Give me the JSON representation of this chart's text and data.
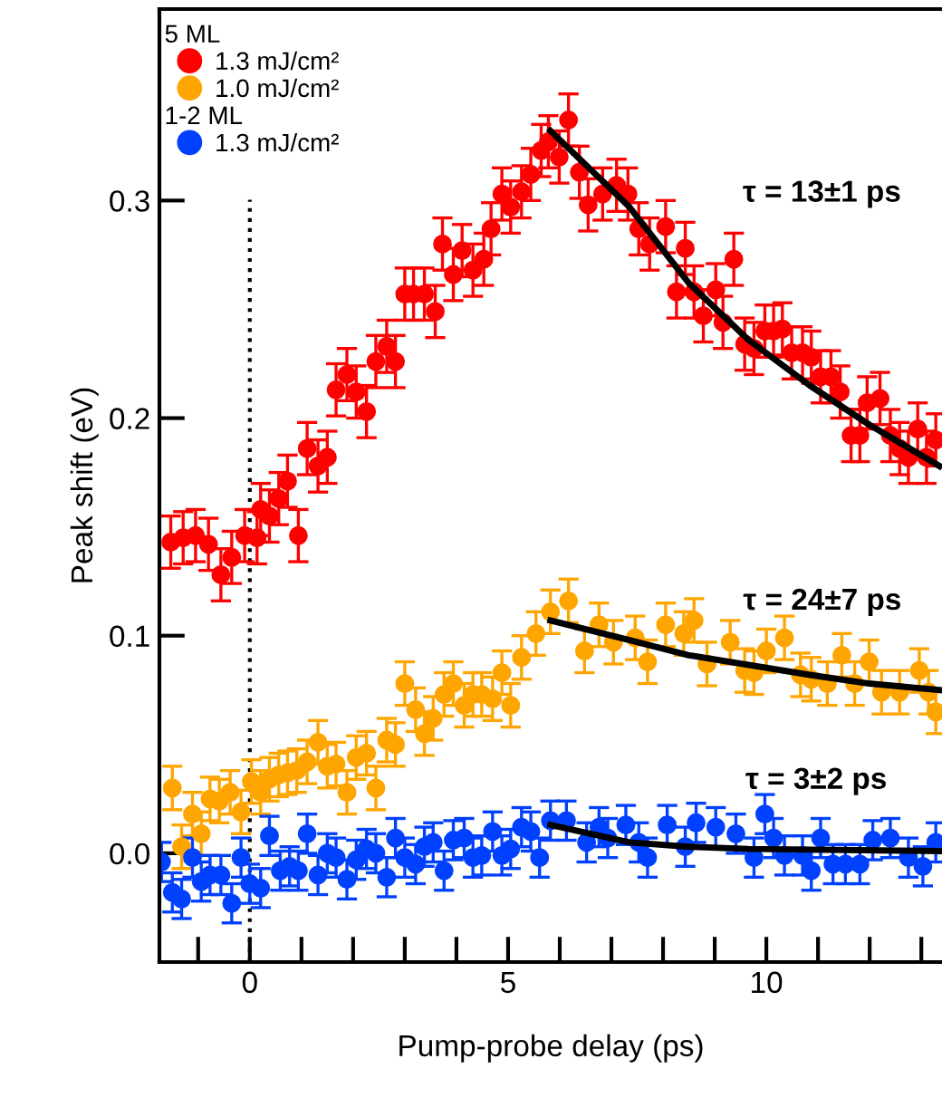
{
  "chart_data": {
    "type": "scatter",
    "xlabel": "Pump-probe delay (ps)",
    "ylabel": "Peak shift (eV)",
    "xlim": [
      -1.75,
      13.4
    ],
    "ylim": [
      -0.05,
      0.388
    ],
    "xticks": [
      {
        "value": -1,
        "label": null
      },
      {
        "value": 0,
        "label": "0"
      },
      {
        "value": 1,
        "label": null
      },
      {
        "value": 2,
        "label": null
      },
      {
        "value": 3,
        "label": null
      },
      {
        "value": 4,
        "label": null
      },
      {
        "value": 5,
        "label": "5"
      },
      {
        "value": 6,
        "label": null
      },
      {
        "value": 7,
        "label": null
      },
      {
        "value": 8,
        "label": null
      },
      {
        "value": 9,
        "label": null
      },
      {
        "value": 10,
        "label": "10"
      },
      {
        "value": 11,
        "label": null
      },
      {
        "value": 12,
        "label": null
      },
      {
        "value": 13,
        "label": null
      }
    ],
    "yticks": [
      {
        "value": 0,
        "label": "0.0"
      },
      {
        "value": 0.1,
        "label": "0.1"
      },
      {
        "value": 0.2,
        "label": "0.2"
      },
      {
        "value": 0.3,
        "label": "0.3"
      }
    ],
    "grid": false,
    "legend": "top left",
    "marker": "circle",
    "ref_lines": [
      {
        "axis": "x",
        "value": 0,
        "color": "#000000",
        "line_style": "dotted"
      }
    ],
    "annotations": [
      "5 ML",
      "1-2 ML",
      {
        "text": "τ = 13±1 ps",
        "x": 9.37,
        "y": 0.273
      },
      {
        "text": "τ = 24±7 ps",
        "x": 10.84,
        "y": 0.082
      },
      {
        "text": "τ = 3±2 ps",
        "x": 9.65,
        "y": 0.002
      }
    ],
    "series": [
      {
        "name": "1.3 mJ/cm²",
        "color": "#ff0000",
        "x": [
          -1.53,
          -1.29,
          -1.05,
          -0.8,
          -0.56,
          -0.35,
          -0.1,
          0.14,
          0.21,
          0.38,
          0.56,
          0.73,
          0.94,
          1.11,
          1.32,
          1.5,
          1.67,
          1.88,
          2.06,
          2.26,
          2.44,
          2.65,
          2.82,
          3.0,
          3.17,
          3.38,
          3.59,
          3.73,
          3.94,
          4.11,
          4.32,
          4.53,
          4.67,
          4.88,
          5.05,
          5.26,
          5.44,
          5.64,
          5.78,
          5.99,
          6.17,
          6.38,
          6.55,
          6.83,
          7.1,
          7.32,
          7.53,
          7.74,
          8.05,
          8.26,
          8.43,
          8.6,
          8.78,
          9.02,
          9.16,
          9.37,
          9.58,
          9.76,
          9.97,
          10.14,
          10.31,
          10.49,
          10.7,
          10.87,
          11.05,
          11.25,
          11.43,
          11.64,
          11.81,
          11.95,
          12.2,
          12.4,
          12.58,
          12.75,
          12.93,
          13.1,
          13.28
        ],
        "values": [
          0.143,
          0.145,
          0.146,
          0.142,
          0.128,
          0.136,
          0.146,
          0.145,
          0.158,
          0.155,
          0.163,
          0.171,
          0.146,
          0.186,
          0.178,
          0.182,
          0.213,
          0.22,
          0.212,
          0.203,
          0.226,
          0.233,
          0.226,
          0.257,
          0.257,
          0.257,
          0.249,
          0.28,
          0.266,
          0.277,
          0.268,
          0.273,
          0.287,
          0.303,
          0.297,
          0.304,
          0.312,
          0.323,
          0.327,
          0.32,
          0.337,
          0.313,
          0.298,
          0.303,
          0.307,
          0.303,
          0.287,
          0.28,
          0.288,
          0.258,
          0.278,
          0.258,
          0.247,
          0.259,
          0.244,
          0.273,
          0.234,
          0.232,
          0.24,
          0.24,
          0.241,
          0.23,
          0.23,
          0.228,
          0.219,
          0.219,
          0.212,
          0.192,
          0.192,
          0.207,
          0.209,
          0.192,
          0.186,
          0.182,
          0.195,
          0.182,
          0.19
        ],
        "errors": [
          0.012,
          0.012,
          0.012,
          0.012,
          0.012,
          0.012,
          0.012,
          0.012,
          0.012,
          0.012,
          0.012,
          0.012,
          0.012,
          0.012,
          0.012,
          0.012,
          0.012,
          0.012,
          0.012,
          0.012,
          0.012,
          0.012,
          0.012,
          0.012,
          0.012,
          0.012,
          0.012,
          0.012,
          0.012,
          0.012,
          0.012,
          0.012,
          0.012,
          0.012,
          0.012,
          0.012,
          0.012,
          0.012,
          0.012,
          0.012,
          0.012,
          0.012,
          0.012,
          0.012,
          0.012,
          0.012,
          0.012,
          0.012,
          0.012,
          0.012,
          0.012,
          0.012,
          0.012,
          0.012,
          0.012,
          0.012,
          0.012,
          0.012,
          0.012,
          0.012,
          0.012,
          0.012,
          0.012,
          0.012,
          0.012,
          0.012,
          0.012,
          0.012,
          0.012,
          0.012,
          0.012,
          0.012,
          0.012,
          0.012,
          0.012,
          0.012,
          0.012
        ]
      },
      {
        "name": "1.0 mJ/cm²",
        "color": "#ffa500",
        "x": [
          -1.5,
          -1.32,
          -1.11,
          -0.94,
          -0.77,
          -0.59,
          -0.38,
          -0.17,
          0.03,
          0.21,
          0.38,
          0.56,
          0.73,
          0.91,
          1.11,
          1.32,
          1.5,
          1.67,
          1.88,
          2.06,
          2.26,
          2.44,
          2.65,
          2.82,
          3.0,
          3.21,
          3.38,
          3.55,
          3.76,
          3.94,
          4.15,
          4.32,
          4.49,
          4.7,
          4.88,
          5.05,
          5.26,
          5.54,
          5.82,
          6.17,
          6.48,
          6.76,
          7.04,
          7.46,
          7.7,
          8.05,
          8.4,
          8.6,
          8.85,
          9.3,
          9.58,
          9.76,
          10.0,
          10.35,
          10.66,
          10.87,
          11.18,
          11.46,
          11.71,
          11.99,
          12.23,
          12.58,
          12.96,
          13.14,
          13.28
        ],
        "values": [
          0.03,
          0.003,
          0.018,
          0.009,
          0.025,
          0.024,
          0.028,
          0.019,
          0.033,
          0.028,
          0.034,
          0.036,
          0.037,
          0.038,
          0.042,
          0.051,
          0.04,
          0.041,
          0.028,
          0.044,
          0.046,
          0.03,
          0.052,
          0.05,
          0.078,
          0.066,
          0.055,
          0.062,
          0.073,
          0.078,
          0.068,
          0.073,
          0.073,
          0.071,
          0.083,
          0.068,
          0.09,
          0.101,
          0.111,
          0.116,
          0.093,
          0.105,
          0.097,
          0.099,
          0.088,
          0.105,
          0.101,
          0.107,
          0.087,
          0.097,
          0.084,
          0.083,
          0.093,
          0.099,
          0.082,
          0.08,
          0.078,
          0.091,
          0.078,
          0.088,
          0.074,
          0.074,
          0.084,
          0.074,
          0.065
        ],
        "errors": [
          0.01,
          0.01,
          0.01,
          0.01,
          0.01,
          0.01,
          0.01,
          0.01,
          0.01,
          0.01,
          0.01,
          0.01,
          0.01,
          0.01,
          0.01,
          0.01,
          0.01,
          0.01,
          0.01,
          0.01,
          0.01,
          0.01,
          0.01,
          0.01,
          0.01,
          0.01,
          0.01,
          0.01,
          0.01,
          0.01,
          0.01,
          0.01,
          0.01,
          0.01,
          0.01,
          0.01,
          0.01,
          0.01,
          0.01,
          0.01,
          0.01,
          0.01,
          0.01,
          0.01,
          0.01,
          0.01,
          0.01,
          0.01,
          0.01,
          0.01,
          0.01,
          0.01,
          0.01,
          0.01,
          0.01,
          0.01,
          0.01,
          0.01,
          0.01,
          0.01,
          0.01,
          0.01,
          0.01,
          0.01,
          0.01
        ]
      },
      {
        "name": "1.3 mJ/cm²",
        "color": "#0040ff",
        "x": [
          -1.71,
          -1.5,
          -1.32,
          -1.11,
          -0.94,
          -0.77,
          -0.56,
          -0.35,
          -0.17,
          0.0,
          0.21,
          0.38,
          0.59,
          0.77,
          0.94,
          1.11,
          1.32,
          1.5,
          1.67,
          1.88,
          2.06,
          2.26,
          2.44,
          2.65,
          2.82,
          3.0,
          3.21,
          3.38,
          3.55,
          3.76,
          3.94,
          4.15,
          4.32,
          4.49,
          4.7,
          4.88,
          5.05,
          5.26,
          5.44,
          5.61,
          5.82,
          6.13,
          6.52,
          6.76,
          6.93,
          7.28,
          7.53,
          7.7,
          8.08,
          8.43,
          8.64,
          9.02,
          9.41,
          9.76,
          9.97,
          10.14,
          10.35,
          10.7,
          10.87,
          11.05,
          11.29,
          11.53,
          11.81,
          12.06,
          12.4,
          12.75,
          13.03,
          13.28
        ],
        "values": [
          -0.004,
          -0.018,
          -0.021,
          -0.002,
          -0.013,
          -0.01,
          -0.01,
          -0.023,
          -0.002,
          -0.014,
          -0.016,
          0.008,
          -0.008,
          -0.006,
          -0.008,
          0.009,
          -0.01,
          0.0,
          -0.002,
          -0.012,
          -0.003,
          0.002,
          0.0,
          -0.011,
          0.007,
          -0.002,
          -0.005,
          0.003,
          0.005,
          -0.008,
          0.006,
          0.007,
          -0.002,
          -0.001,
          0.01,
          -0.001,
          0.002,
          0.012,
          0.01,
          -0.002,
          0.015,
          0.015,
          0.005,
          0.012,
          0.007,
          0.013,
          0.005,
          -0.002,
          0.013,
          0.003,
          0.014,
          0.012,
          0.009,
          -0.002,
          0.018,
          0.007,
          -0.001,
          -0.001,
          -0.008,
          0.007,
          -0.005,
          -0.005,
          -0.005,
          0.006,
          0.007,
          -0.002,
          -0.006,
          0.005
        ],
        "errors": [
          0.009,
          0.009,
          0.009,
          0.009,
          0.009,
          0.009,
          0.009,
          0.009,
          0.009,
          0.009,
          0.009,
          0.009,
          0.009,
          0.009,
          0.009,
          0.009,
          0.009,
          0.009,
          0.009,
          0.009,
          0.009,
          0.009,
          0.009,
          0.009,
          0.009,
          0.009,
          0.009,
          0.009,
          0.009,
          0.009,
          0.009,
          0.009,
          0.009,
          0.009,
          0.009,
          0.009,
          0.009,
          0.009,
          0.009,
          0.009,
          0.009,
          0.009,
          0.009,
          0.009,
          0.009,
          0.009,
          0.009,
          0.009,
          0.009,
          0.009,
          0.009,
          0.009,
          0.009,
          0.009,
          0.009,
          0.009,
          0.009,
          0.009,
          0.009,
          0.009,
          0.009,
          0.009,
          0.009,
          0.009,
          0.009,
          0.009,
          0.009,
          0.009
        ]
      },
      {
        "type": "line",
        "marker": "none",
        "color": "#000000",
        "x": [
          5.82,
          7.35,
          8.5,
          9.65,
          10.84,
          11.99,
          13.35
        ],
        "values": [
          0.332,
          0.297,
          0.262,
          0.236,
          0.215,
          0.197,
          0.178
        ]
      },
      {
        "type": "line",
        "marker": "none",
        "color": "#000000",
        "x": [
          5.82,
          7.35,
          8.5,
          10.84,
          11.99,
          13.35
        ],
        "values": [
          0.107,
          0.098,
          0.091,
          0.082,
          0.078,
          0.075
        ]
      },
      {
        "type": "line",
        "marker": "none",
        "color": "#000000",
        "x": [
          5.82,
          7.35,
          8.5,
          9.65,
          13.35
        ],
        "values": [
          0.013,
          0.005,
          0.003,
          0.002,
          0.001
        ]
      }
    ]
  }
}
